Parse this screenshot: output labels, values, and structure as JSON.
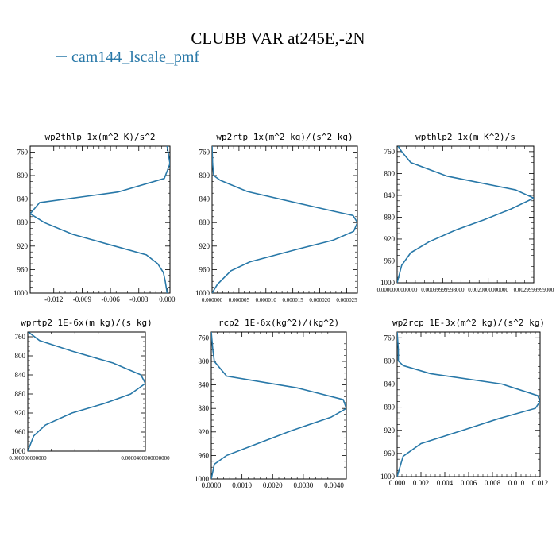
{
  "figure": {
    "title": "CLUBB VAR at245E,-2N",
    "legend_label": "cam144_lscale_pmf",
    "line_color": "#2878a8"
  },
  "chart_data": [
    {
      "type": "line",
      "title": "wp2thlp   1x(m^2 K)/s^2",
      "xlim": [
        -0.0145,
        0.0003
      ],
      "ylim": [
        1000,
        750
      ],
      "xticks": [
        -0.012,
        -0.009,
        -0.006,
        -0.003,
        0.0
      ],
      "xtick_labels": [
        "-0.012",
        "-0.009",
        "-0.006",
        "-0.003",
        "0.000"
      ],
      "yticks": [
        760,
        800,
        840,
        880,
        920,
        960,
        1000
      ],
      "series": [
        {
          "x": [
            0.0,
            0.0003,
            -0.0003,
            -0.0052,
            -0.0135,
            -0.0145,
            -0.013,
            -0.01,
            -0.006,
            -0.0022,
            -0.001,
            -0.0004,
            -0.0002,
            0.0
          ],
          "y": [
            750,
            780,
            805,
            828,
            846,
            865,
            880,
            900,
            918,
            935,
            950,
            965,
            980,
            1000
          ]
        }
      ]
    },
    {
      "type": "line",
      "title": "wp2rtp   1x(m^2 kg)/(s^2 kg)",
      "xlim": [
        0.0,
        2.7e-05
      ],
      "ylim": [
        1000,
        750
      ],
      "xticks": [
        0.0,
        5e-06,
        1e-05,
        1.5e-05,
        2e-05,
        2.5e-05
      ],
      "xtick_labels": [
        "0.000000",
        "0.000005",
        "0.000010",
        "0.000015",
        "0.000020",
        "0.000025"
      ],
      "yticks": [
        760,
        800,
        840,
        880,
        920,
        960,
        1000
      ],
      "series": [
        {
          "x": [
            0.0,
            1e-07,
            3e-07,
            1.5e-06,
            6.5e-06,
            1.5e-05,
            2.22e-05,
            2.62e-05,
            2.7e-05,
            2.63e-05,
            2.25e-05,
            1.6e-05,
            7e-06,
            3.5e-06,
            1e-06,
            0.0
          ],
          "y": [
            750,
            780,
            800,
            808,
            827,
            845,
            860,
            868,
            880,
            895,
            910,
            925,
            947,
            962,
            985,
            1000
          ]
        }
      ]
    },
    {
      "type": "line",
      "title": "wpthlp2   1x(m K^2)/s",
      "xlim": [
        0.0,
        0.003
      ],
      "ylim": [
        1000,
        750
      ],
      "xticks": [
        0.0,
        0.001,
        0.002,
        0.003
      ],
      "xtick_labels": [
        "0.0000000000000",
        "0.00099999998000",
        "0.0020000000000",
        "0.0029999999000"
      ],
      "yticks": [
        760,
        800,
        840,
        880,
        920,
        960,
        1000
      ],
      "series": [
        {
          "x": [
            2e-05,
            0.0001,
            0.0003,
            0.0011,
            0.0026,
            0.003,
            0.0025,
            0.0019,
            0.0013,
            0.0007,
            0.0003,
            0.0001,
            0.0
          ],
          "y": [
            750,
            760,
            780,
            805,
            830,
            845,
            865,
            885,
            903,
            925,
            945,
            968,
            1000
          ]
        }
      ]
    },
    {
      "type": "line",
      "title": "wprtp2   1E-6x(m kg)/(s kg)",
      "xlim": [
        0.0,
        4e-05
      ],
      "ylim": [
        1000,
        750
      ],
      "xticks": [
        0.0,
        4e-05
      ],
      "xtick_labels": [
        "0.000000000000",
        "0.0000400000000000"
      ],
      "yticks": [
        760,
        800,
        840,
        880,
        920,
        960,
        1000
      ],
      "series": [
        {
          "x": [
            2e-07,
            4e-06,
            1.5e-05,
            2.9e-05,
            3.85e-05,
            4e-05,
            3.5e-05,
            2.6e-05,
            1.5e-05,
            6e-06,
            2e-06,
            0.0
          ],
          "y": [
            750,
            768,
            790,
            815,
            840,
            858,
            880,
            900,
            920,
            945,
            968,
            1000
          ]
        }
      ]
    },
    {
      "type": "line",
      "title": "rcp2   1E-6x(kg^2)/(kg^2)",
      "xlim": [
        0.0,
        0.0044
      ],
      "ylim": [
        1000,
        750
      ],
      "xticks": [
        0.0,
        0.001,
        0.002,
        0.003,
        0.004
      ],
      "xtick_labels": [
        "0.0000",
        "0.0010",
        "0.0020",
        "0.0030",
        "0.0040"
      ],
      "yticks": [
        760,
        800,
        840,
        880,
        920,
        960,
        1000
      ],
      "series": [
        {
          "x": [
            0.0,
            5e-05,
            0.0001,
            0.0005,
            0.0028,
            0.0043,
            0.0044,
            0.0039,
            0.0026,
            0.0015,
            0.0005,
            0.0001,
            0.0
          ],
          "y": [
            750,
            780,
            800,
            825,
            845,
            865,
            880,
            895,
            918,
            940,
            960,
            975,
            1000
          ]
        }
      ]
    },
    {
      "type": "line",
      "title": "wp2rcp   1E-3x(m^2 kg)/(s^2 kg)",
      "xlim": [
        0.0,
        0.012
      ],
      "ylim": [
        1000,
        750
      ],
      "xticks": [
        0.0,
        0.002,
        0.004,
        0.006,
        0.008,
        0.01,
        0.012
      ],
      "xtick_labels": [
        "0.000",
        "0.002",
        "0.004",
        "0.006",
        "0.008",
        "0.010",
        "0.012"
      ],
      "yticks": [
        760,
        800,
        840,
        880,
        920,
        960,
        1000
      ],
      "series": [
        {
          "x": [
            0.0,
            0.0001,
            0.0001,
            0.0005,
            0.0028,
            0.0088,
            0.0118,
            0.012,
            0.0116,
            0.0085,
            0.0055,
            0.002,
            0.0005,
            0.0
          ],
          "y": [
            750,
            780,
            800,
            808,
            822,
            840,
            860,
            870,
            882,
            900,
            920,
            943,
            965,
            1000
          ]
        }
      ]
    }
  ]
}
